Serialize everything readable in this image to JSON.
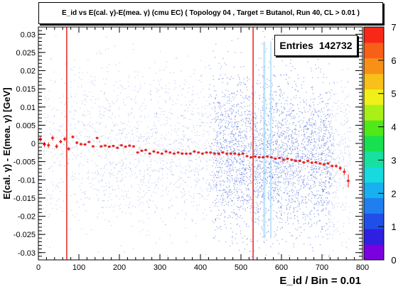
{
  "chart_data": {
    "type": "heatmap",
    "title": "E_id vs E(cal. γ)-E(mea. γ) (cmu EC) ( Topology 04 , Target = Butanol, Run 40, CL > 0.01 )",
    "xlabel": "E_id / Bin = 0.01",
    "ylabel": "E(cal. γ) - E(mea. γ) [GeV]",
    "xlim": [
      0,
      800
    ],
    "ylim": [
      -0.032,
      0.032
    ],
    "x_ticks": [
      "0",
      "100",
      "200",
      "300",
      "400",
      "500",
      "600",
      "700",
      "800"
    ],
    "y_ticks": [
      "0.03",
      "0.025",
      "0.02",
      "0.015",
      "0.01",
      "0.005",
      "0",
      "-0.005",
      "-0.01",
      "-0.015",
      "-0.02",
      "-0.025",
      "-0.03"
    ],
    "y_tick_values": [
      0.03,
      0.025,
      0.02,
      0.015,
      0.01,
      0.005,
      0,
      -0.005,
      -0.01,
      -0.015,
      -0.02,
      -0.025,
      -0.03
    ],
    "x_tick_values": [
      0,
      100,
      200,
      300,
      400,
      500,
      600,
      700,
      800
    ],
    "colorbar": {
      "ticks": [
        "0",
        "1",
        "2",
        "3",
        "4",
        "5",
        "6",
        "7"
      ],
      "range": [
        0,
        7
      ]
    },
    "stats": {
      "label": "Entries",
      "value": "142732"
    },
    "cut_lines_x": [
      70,
      530
    ],
    "profile": {
      "name": "mean",
      "x": [
        5,
        15,
        25,
        35,
        45,
        55,
        65,
        75,
        85,
        95,
        105,
        115,
        125,
        135,
        145,
        155,
        165,
        175,
        185,
        195,
        205,
        215,
        225,
        235,
        245,
        255,
        265,
        275,
        285,
        295,
        305,
        315,
        325,
        335,
        345,
        355,
        365,
        375,
        385,
        395,
        405,
        415,
        425,
        435,
        445,
        455,
        465,
        475,
        485,
        495,
        505,
        515,
        525,
        535,
        545,
        555,
        565,
        575,
        585,
        595,
        605,
        615,
        625,
        635,
        645,
        655,
        665,
        675,
        685,
        695,
        705,
        715,
        725,
        735,
        745,
        755,
        765
      ],
      "y": [
        0.0012,
        -0.0003,
        -0.0005,
        0.0015,
        -0.0008,
        0.0005,
        0.0012,
        -0.0015,
        0.0018,
        0.0002,
        -0.0002,
        -0.0003,
        0.0004,
        -0.0008,
        0.0015,
        -0.0008,
        -0.0006,
        -0.0009,
        -0.0007,
        -0.0012,
        -0.0005,
        -0.0009,
        -0.0006,
        -0.0008,
        -0.0025,
        -0.002,
        -0.0018,
        -0.0028,
        -0.0022,
        -0.0025,
        -0.0028,
        -0.0022,
        -0.0025,
        -0.0028,
        -0.0025,
        -0.0028,
        -0.0028,
        -0.0028,
        -0.0022,
        -0.0025,
        -0.0028,
        -0.0025,
        -0.0025,
        -0.0028,
        -0.0028,
        -0.0025,
        -0.0028,
        -0.0028,
        -0.0028,
        -0.003,
        -0.0028,
        -0.0035,
        -0.0038,
        -0.0036,
        -0.0038,
        -0.0038,
        -0.0036,
        -0.0038,
        -0.0042,
        -0.004,
        -0.0045,
        -0.0042,
        -0.0045,
        -0.0048,
        -0.0048,
        -0.0052,
        -0.0048,
        -0.0053,
        -0.0052,
        -0.0055,
        -0.0058,
        -0.0055,
        -0.0062,
        -0.0062,
        -0.0068,
        -0.0078,
        -0.0103
      ],
      "err": [
        0.0008,
        0.0007,
        0.0008,
        0.0007,
        0.0006,
        0.0005,
        0.0006,
        0.0005,
        0.0004,
        0.0004,
        0.0004,
        0.0003,
        0.0003,
        0.0003,
        0.0003,
        0.0003,
        0.0003,
        0.0003,
        0.0003,
        0.0003,
        0.0003,
        0.0003,
        0.0003,
        0.0003,
        0.0003,
        0.0003,
        0.0003,
        0.0003,
        0.0003,
        0.0003,
        0.0003,
        0.0003,
        0.0003,
        0.0003,
        0.0003,
        0.0003,
        0.0003,
        0.0003,
        0.0003,
        0.0003,
        0.0003,
        0.0003,
        0.0003,
        0.0003,
        0.0003,
        0.0003,
        0.0003,
        0.0003,
        0.0003,
        0.0003,
        0.0003,
        0.0003,
        0.0003,
        0.0003,
        0.0003,
        0.0003,
        0.0003,
        0.0003,
        0.0003,
        0.0003,
        0.0003,
        0.0003,
        0.0003,
        0.0003,
        0.0003,
        0.0003,
        0.0003,
        0.0003,
        0.0003,
        0.0003,
        0.0003,
        0.0003,
        0.0004,
        0.0004,
        0.0006,
        0.0009,
        0.0018
      ]
    },
    "colors": {
      "profile": "#e8231e",
      "cut_line": "#e8231e",
      "scatter": "#3b5bdb",
      "frame": "#000000"
    }
  }
}
